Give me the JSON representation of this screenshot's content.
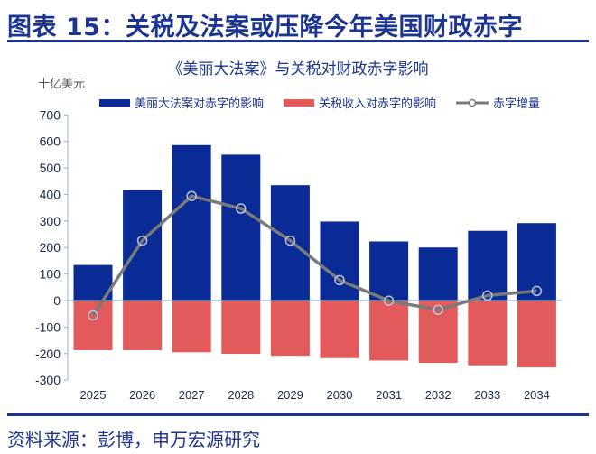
{
  "header": {
    "title": "图表 15：关税及法案或压降今年美国财政赤字"
  },
  "footer": {
    "source": "资料来源：彭博，申万宏源研究"
  },
  "colors": {
    "brand": "#1b3590",
    "bill": "#0a2a96",
    "tariff": "#e25a5a",
    "line": "#7a7a7a"
  },
  "chart_data": {
    "type": "bar",
    "title": "《美丽大法案》与关税对财政赤字影响",
    "ylabel": "十亿美元",
    "xlabel": "",
    "ylim": [
      -300,
      700
    ],
    "yticks": [
      700,
      600,
      500,
      400,
      300,
      200,
      100,
      0,
      -100,
      -200,
      -300
    ],
    "grid": false,
    "legend_position": "top",
    "categories": [
      "2025",
      "2026",
      "2027",
      "2028",
      "2029",
      "2030",
      "2031",
      "2032",
      "2033",
      "2034"
    ],
    "series": [
      {
        "name": "美丽大法案对赤字的影响",
        "type": "bar",
        "values": [
          134,
          416,
          586,
          550,
          435,
          298,
          223,
          200,
          263,
          292
        ]
      },
      {
        "name": "关税收入对赤字的影响",
        "type": "bar",
        "values": [
          -187,
          -187,
          -195,
          -201,
          -208,
          -217,
          -226,
          -235,
          -244,
          -252
        ]
      },
      {
        "name": "赤字增量",
        "type": "line",
        "values": [
          -56,
          226,
          394,
          347,
          226,
          77,
          -1,
          -35,
          19,
          36
        ]
      }
    ]
  }
}
